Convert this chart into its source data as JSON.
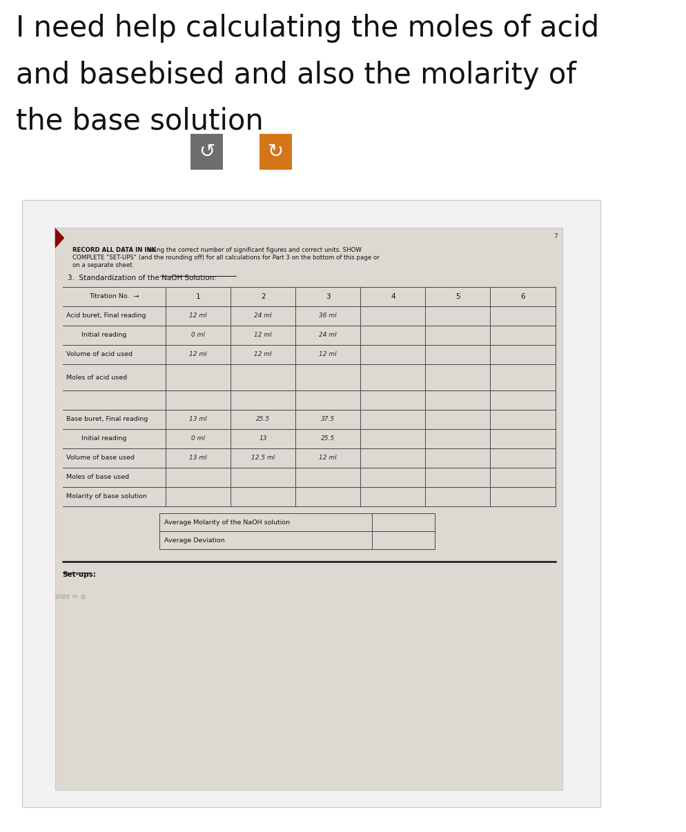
{
  "bg_color": "#ffffff",
  "header_text_line1": "I need help calculating the moles of acid",
  "header_text_line2": "and basebised and also the molarity of",
  "header_text_line3": "the base solution",
  "header_fontsize": 30,
  "button1_color": "#6e6e6e",
  "button2_color": "#d4751a",
  "button_symbol1": "↺",
  "button_symbol2": "↻",
  "outer_card_bg": "#f2f2f2",
  "outer_card_edge": "#cccccc",
  "paper_bg": "#ddd9d2",
  "paper_edge": "#bbbbbb",
  "record_bold": "RECORD ALL DATA IN INK",
  "record_rest1": " using the correct number of significant figures and correct units. SHOW",
  "record_line2": "COMPLETE \"SET-UPS\" (and the rounding off) for all calculations for Part 3 on the bottom of this page or",
  "record_line3": "on a separate sheet.",
  "section_title": "3.  Standardization of the NaOH Solution:",
  "titration_label": "Titration No.  →",
  "titration_cols": [
    "1",
    "2",
    "3",
    "4",
    "5",
    "6"
  ],
  "row_labels": [
    "Acid buret, Final reading",
    "Initial reading",
    "Volume of acid used",
    "Moles of acid used",
    "Base buret, Final reading",
    "Initial reading",
    "Volume of base used",
    "Moles of base used",
    "Molarity of base solution"
  ],
  "row_indented": [
    false,
    true,
    false,
    false,
    false,
    true,
    false,
    false,
    false
  ],
  "row_data": [
    [
      "12 ml",
      "24 ml",
      "36 ml",
      "",
      "",
      ""
    ],
    [
      "0 ml",
      "12 ml",
      "24 ml",
      "",
      "",
      ""
    ],
    [
      "12 ml",
      "12 ml",
      "12 ml",
      "",
      "",
      ""
    ],
    [
      "",
      "",
      "",
      "",
      "",
      ""
    ],
    [
      "13 ml",
      "25.5",
      "37.5",
      "",
      "",
      ""
    ],
    [
      "0 ml",
      "13",
      "25.5",
      "",
      "",
      ""
    ],
    [
      "13 ml",
      "12.5 ml",
      "12 ml",
      "",
      "",
      ""
    ],
    [
      "",
      "",
      "",
      "",
      "",
      ""
    ],
    [
      "",
      "",
      "",
      "",
      "",
      ""
    ]
  ],
  "avg_label": "Average Molarity of the NaOH solution",
  "avg_dev_label": "Average Deviation",
  "setups_label": "Set-ups:",
  "moles_handwritten": "oles = ≤",
  "page_number": "7"
}
